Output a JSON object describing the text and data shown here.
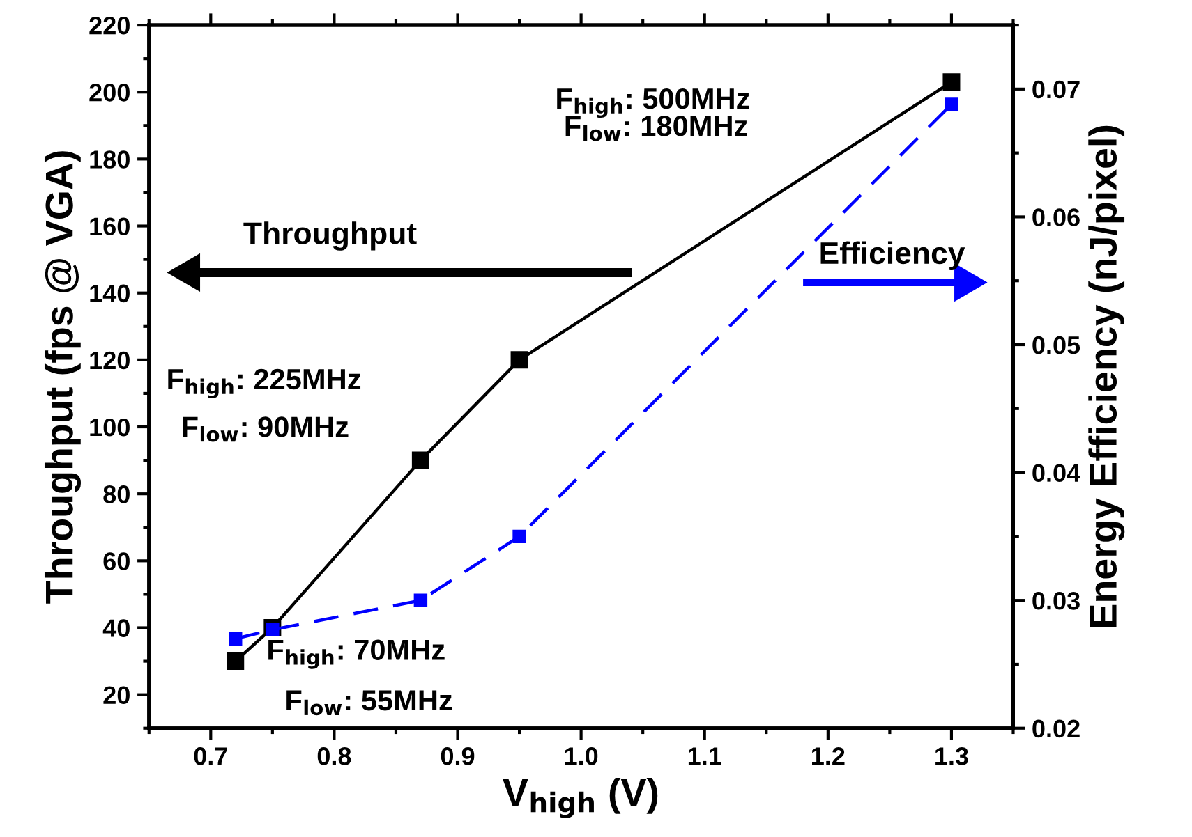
{
  "chart_data": {
    "type": "line",
    "xlabel": "V$_{high}$ (V)",
    "ylabel": "Throughput (fps @ VGA)",
    "y2label": "Energy Efficiency (nJ/pixel)",
    "xlim": [
      0.65,
      1.35
    ],
    "xticks": [
      {
        "value": 0.7,
        "label": "0.7"
      },
      {
        "value": 0.8,
        "label": "0.8"
      },
      {
        "value": 0.9,
        "label": "0.9"
      },
      {
        "value": 1.0,
        "label": "1.0"
      },
      {
        "value": 1.1,
        "label": "1.1"
      },
      {
        "value": 1.2,
        "label": "1.2"
      },
      {
        "value": 1.3,
        "label": "1.3"
      }
    ],
    "ylim": [
      10,
      220
    ],
    "yticks": [
      20,
      40,
      60,
      80,
      100,
      120,
      140,
      160,
      180,
      200,
      220
    ],
    "y2lim": [
      0.02,
      0.075
    ],
    "y2ticks": [
      0.02,
      0.03,
      0.04,
      0.05,
      0.06,
      0.07
    ],
    "marker": "square",
    "grid": false,
    "series": [
      {
        "color": "#000000",
        "x": [
          0.72,
          0.75,
          0.87,
          0.95,
          1.3
        ],
        "values": [
          30,
          40,
          90,
          120,
          203
        ],
        "line_style": "solid"
      },
      {
        "color": "#0000ff",
        "x": [
          0.72,
          0.75,
          0.87,
          0.95,
          1.3
        ],
        "values": [
          0.027,
          0.0277,
          0.03,
          0.035,
          0.0688
        ],
        "line_style": "dashed",
        "axis": "y2"
      }
    ],
    "annotations": [
      "F$_{high}$: 500MHz",
      "F$_{low}$: 180MHz",
      "F$_{high}$: 225MHz",
      "F$_{low}$: 90MHz",
      "F$_{high}$: 70MHz",
      "F$_{low}$: 55MHz",
      "Throughput",
      "Efficiency"
    ]
  }
}
